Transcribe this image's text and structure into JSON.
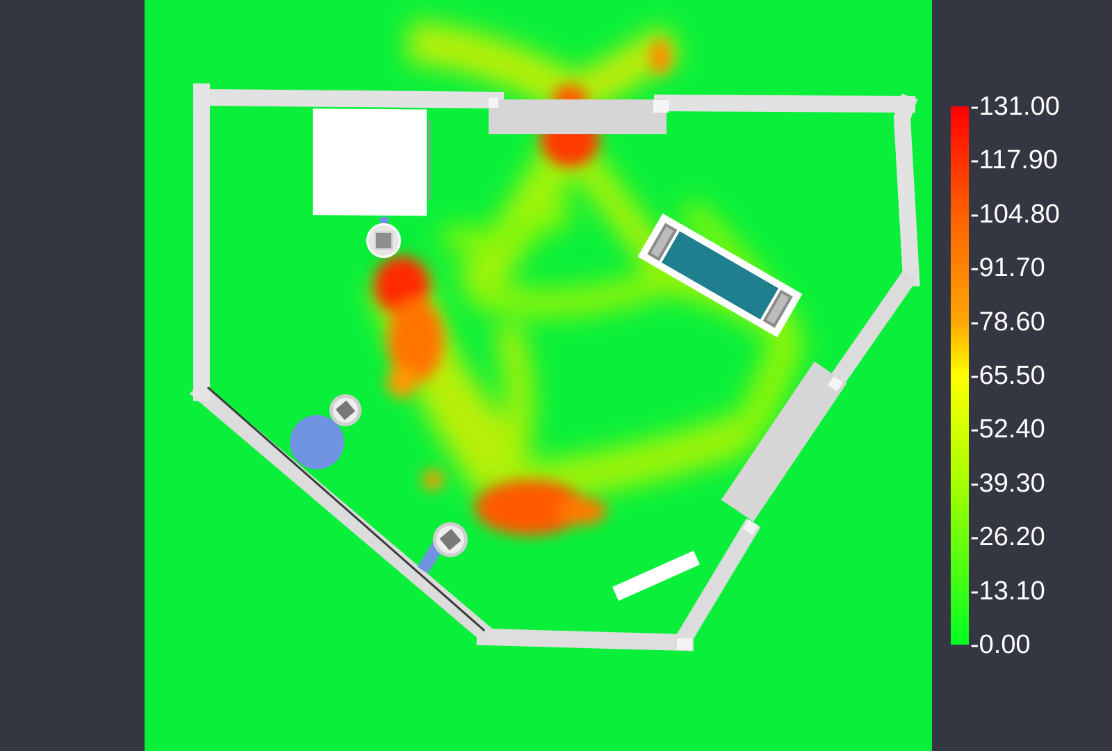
{
  "colors": {
    "background": "#343741",
    "ground": "#0af03a",
    "wall": "#e2e2e2",
    "obstacle": "#ffffff",
    "robot_path": "#6f93e0",
    "pool_water": "#1f7f8e"
  },
  "legend": {
    "ticks": [
      "-131.00",
      "-117.90",
      "-104.80",
      "-91.70",
      "-78.60",
      "-65.50",
      "-52.40",
      "-39.30",
      "-26.20",
      "-13.10",
      "-0.00"
    ],
    "gradient": [
      "#ff0000",
      "#ff6000",
      "#ffa600",
      "#ffff00",
      "#a6ff00",
      "#00ff22"
    ]
  },
  "scene": {
    "heatmap_type": "heatmap",
    "hotspots": [
      {
        "label": "left-blob",
        "intensity": 131
      },
      {
        "label": "bottom-blob",
        "intensity": 120
      },
      {
        "label": "top-door",
        "intensity": 118
      },
      {
        "label": "top-right-outside",
        "intensity": 95
      }
    ]
  }
}
